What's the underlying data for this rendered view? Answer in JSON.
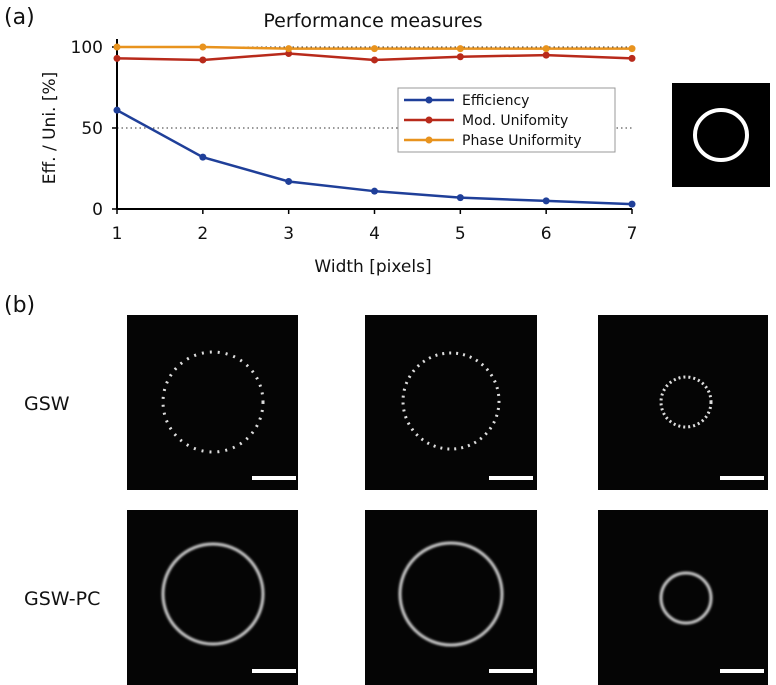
{
  "chart_data": {
    "type": "line",
    "title": "Performance measures",
    "x_label": "Width [pixels]",
    "y_label": "Eff. / Uni. [%]",
    "x": [
      1,
      2,
      3,
      4,
      5,
      6,
      7
    ],
    "xlim": [
      1,
      7
    ],
    "xticks": [
      1,
      2,
      3,
      4,
      5,
      6,
      7
    ],
    "ylim": [
      0,
      100
    ],
    "yticks": [
      0,
      50,
      100
    ],
    "hlines": [
      50,
      100
    ],
    "legend": "upper right",
    "series": [
      {
        "name": "Efficiency",
        "color": "#1f3f99",
        "values": [
          61,
          32,
          17,
          11,
          7,
          5,
          3
        ]
      },
      {
        "name": "Mod. Unifomity",
        "color": "#b82a1b",
        "values": [
          93,
          92,
          96,
          92,
          94,
          95,
          93
        ]
      },
      {
        "name": "Phase Uniformity",
        "color": "#e8931e",
        "values": [
          100,
          100,
          99,
          99,
          99,
          99,
          99
        ]
      }
    ]
  },
  "panels": {
    "a": "(a)",
    "b": "(b)"
  },
  "rows": [
    "GSW",
    "GSW-PC"
  ]
}
